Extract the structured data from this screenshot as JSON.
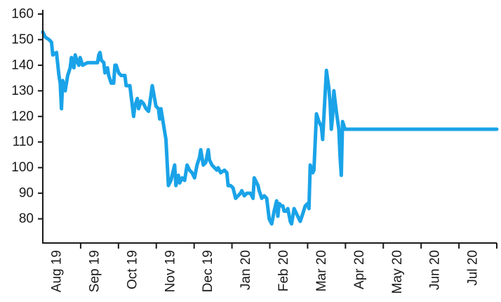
{
  "chart_data": {
    "type": "line",
    "title": "",
    "xlabel": "",
    "ylabel": "",
    "y_ticks": [
      80,
      90,
      100,
      110,
      120,
      130,
      140,
      150,
      160
    ],
    "x_ticks": [
      "Aug 19",
      "Sep 19",
      "Oct 19",
      "Nov 19",
      "Dec 19",
      "Jan 20",
      "Feb 20",
      "Mar 20",
      "Apr 20",
      "May 20",
      "Jun 20",
      "Jul 20"
    ],
    "ylim": [
      70,
      160
    ],
    "xlim": [
      "2019-08-01",
      "2020-07-31"
    ],
    "grid": false,
    "line_color": "#1aa3e8",
    "series": [
      {
        "points": [
          [
            "2019-08-01",
            153
          ],
          [
            "2019-08-03",
            151
          ],
          [
            "2019-08-06",
            150
          ],
          [
            "2019-08-08",
            149
          ],
          [
            "2019-08-09",
            144
          ],
          [
            "2019-08-12",
            145
          ],
          [
            "2019-08-14",
            136
          ],
          [
            "2019-08-15",
            133
          ],
          [
            "2019-08-16",
            123
          ],
          [
            "2019-08-17",
            134
          ],
          [
            "2019-08-19",
            130
          ],
          [
            "2019-08-21",
            136
          ],
          [
            "2019-08-23",
            139
          ],
          [
            "2019-08-24",
            143
          ],
          [
            "2019-08-26",
            139
          ],
          [
            "2019-08-27",
            144
          ],
          [
            "2019-08-29",
            141
          ],
          [
            "2019-08-30",
            140
          ],
          [
            "2019-08-31",
            143
          ],
          [
            "2019-09-02",
            140
          ],
          [
            "2019-09-06",
            141
          ],
          [
            "2019-09-09",
            141
          ],
          [
            "2019-09-12",
            141
          ],
          [
            "2019-09-14",
            141
          ],
          [
            "2019-09-15",
            144
          ],
          [
            "2019-09-16",
            145
          ],
          [
            "2019-09-17",
            142
          ],
          [
            "2019-09-19",
            141
          ],
          [
            "2019-09-20",
            137
          ],
          [
            "2019-09-22",
            139
          ],
          [
            "2019-09-23",
            136
          ],
          [
            "2019-09-25",
            133
          ],
          [
            "2019-09-27",
            133
          ],
          [
            "2019-09-28",
            140
          ],
          [
            "2019-09-29",
            140
          ],
          [
            "2019-10-01",
            137
          ],
          [
            "2019-10-03",
            136
          ],
          [
            "2019-10-06",
            136
          ],
          [
            "2019-10-07",
            132
          ],
          [
            "2019-10-10",
            132
          ],
          [
            "2019-10-11",
            128
          ],
          [
            "2019-10-13",
            120
          ],
          [
            "2019-10-14",
            124
          ],
          [
            "2019-10-16",
            127
          ],
          [
            "2019-10-17",
            123
          ],
          [
            "2019-10-19",
            126
          ],
          [
            "2019-10-21",
            125
          ],
          [
            "2019-10-23",
            123
          ],
          [
            "2019-10-25",
            122
          ],
          [
            "2019-10-26",
            125
          ],
          [
            "2019-10-28",
            132
          ],
          [
            "2019-10-31",
            124
          ],
          [
            "2019-11-02",
            123
          ],
          [
            "2019-11-03",
            119
          ],
          [
            "2019-11-04",
            123
          ],
          [
            "2019-11-06",
            117
          ],
          [
            "2019-11-08",
            111
          ],
          [
            "2019-11-10",
            93
          ],
          [
            "2019-11-12",
            95
          ],
          [
            "2019-11-15",
            101
          ],
          [
            "2019-11-16",
            93
          ],
          [
            "2019-11-18",
            97
          ],
          [
            "2019-11-19",
            94
          ],
          [
            "2019-11-21",
            96
          ],
          [
            "2019-11-23",
            95
          ],
          [
            "2019-11-25",
            101
          ],
          [
            "2019-11-27",
            99
          ],
          [
            "2019-11-29",
            98
          ],
          [
            "2019-12-01",
            96
          ],
          [
            "2019-12-03",
            101
          ],
          [
            "2019-12-05",
            104
          ],
          [
            "2019-12-06",
            107
          ],
          [
            "2019-12-08",
            101
          ],
          [
            "2019-12-10",
            102
          ],
          [
            "2019-12-12",
            107
          ],
          [
            "2019-12-13",
            103
          ],
          [
            "2019-12-15",
            101
          ],
          [
            "2019-12-17",
            100
          ],
          [
            "2019-12-19",
            99
          ],
          [
            "2019-12-20",
            100
          ],
          [
            "2019-12-22",
            98
          ],
          [
            "2019-12-25",
            99
          ],
          [
            "2019-12-27",
            98
          ],
          [
            "2019-12-28",
            93
          ],
          [
            "2019-12-30",
            93
          ],
          [
            "2020-01-01",
            92
          ],
          [
            "2020-01-03",
            88
          ],
          [
            "2020-01-05",
            89
          ],
          [
            "2020-01-07",
            90
          ],
          [
            "2020-01-08",
            91
          ],
          [
            "2020-01-10",
            89
          ],
          [
            "2020-01-12",
            90
          ],
          [
            "2020-01-15",
            90
          ],
          [
            "2020-01-17",
            88
          ],
          [
            "2020-01-18",
            96
          ],
          [
            "2020-01-21",
            93
          ],
          [
            "2020-01-22",
            91
          ],
          [
            "2020-01-24",
            88
          ],
          [
            "2020-01-26",
            89
          ],
          [
            "2020-01-28",
            88
          ],
          [
            "2020-01-30",
            80
          ],
          [
            "2020-02-01",
            78
          ],
          [
            "2020-02-03",
            83
          ],
          [
            "2020-02-05",
            87
          ],
          [
            "2020-02-06",
            81
          ],
          [
            "2020-02-07",
            86
          ],
          [
            "2020-02-09",
            85
          ],
          [
            "2020-02-10",
            85
          ],
          [
            "2020-02-11",
            83
          ],
          [
            "2020-02-13",
            83
          ],
          [
            "2020-02-14",
            84
          ],
          [
            "2020-02-16",
            79
          ],
          [
            "2020-02-17",
            78
          ],
          [
            "2020-02-19",
            84
          ],
          [
            "2020-02-21",
            82
          ],
          [
            "2020-02-23",
            80
          ],
          [
            "2020-02-24",
            79
          ],
          [
            "2020-02-26",
            82
          ],
          [
            "2020-02-28",
            85
          ],
          [
            "2020-03-01",
            86
          ],
          [
            "2020-03-02",
            84
          ],
          [
            "2020-03-03",
            101
          ],
          [
            "2020-03-05",
            98
          ],
          [
            "2020-03-06",
            99
          ],
          [
            "2020-03-08",
            121
          ],
          [
            "2020-03-10",
            118
          ],
          [
            "2020-03-12",
            116
          ],
          [
            "2020-03-13",
            111
          ],
          [
            "2020-03-16",
            138
          ],
          [
            "2020-03-18",
            131
          ],
          [
            "2020-03-19",
            125
          ],
          [
            "2020-03-20",
            115
          ],
          [
            "2020-03-21",
            120
          ],
          [
            "2020-03-22",
            130
          ],
          [
            "2020-03-24",
            122
          ],
          [
            "2020-03-26",
            115
          ],
          [
            "2020-03-27",
            104
          ],
          [
            "2020-03-28",
            97
          ],
          [
            "2020-03-29",
            118
          ],
          [
            "2020-03-31",
            115
          ],
          [
            "2020-04-05",
            115
          ],
          [
            "2020-04-30",
            115
          ],
          [
            "2020-05-31",
            115
          ],
          [
            "2020-06-30",
            115
          ],
          [
            "2020-07-31",
            115
          ]
        ]
      }
    ]
  }
}
